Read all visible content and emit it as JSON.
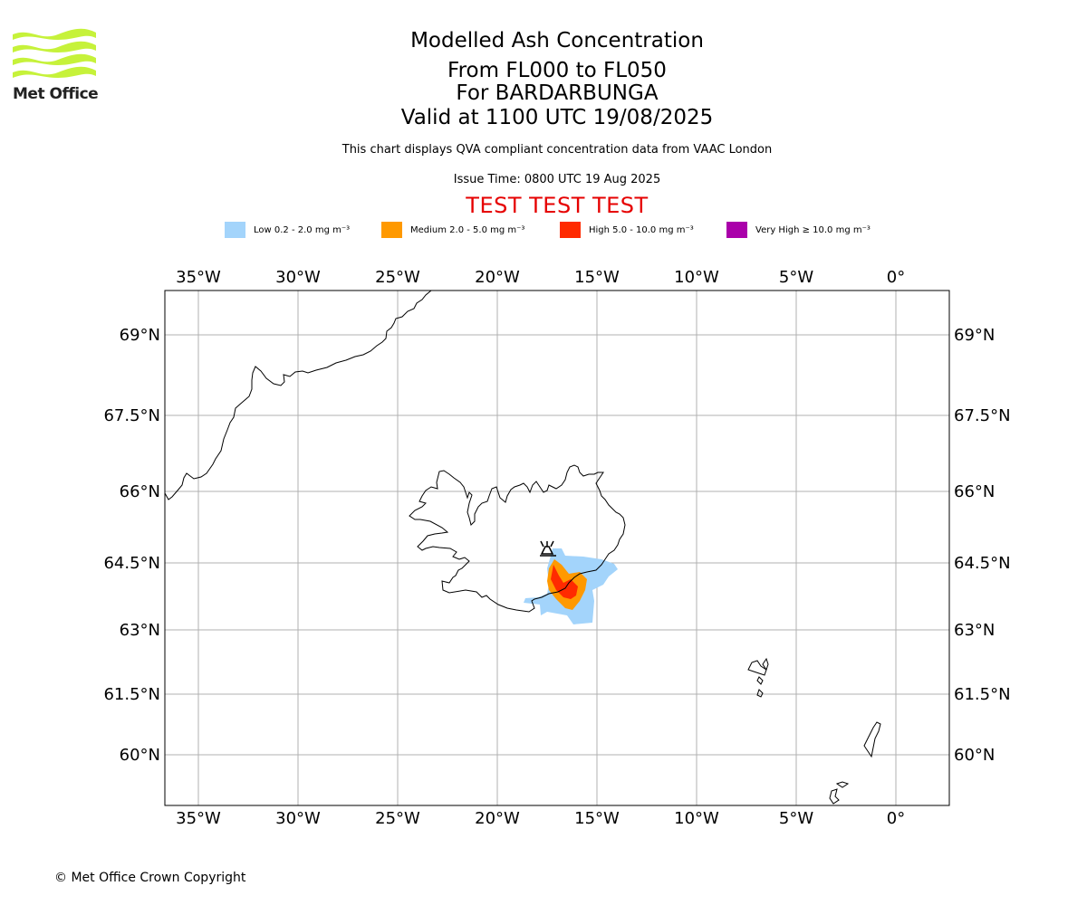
{
  "logo": {
    "text": "Met Office"
  },
  "header": {
    "title": "Modelled Ash Concentration",
    "levels": "From FL000 to FL050",
    "volcano": "For BARDARBUNGA",
    "valid": "Valid at 1100 UTC 19/08/2025",
    "description": "This chart displays QVA compliant concentration data from VAAC London",
    "issue_time": "Issue Time: 0800 UTC 19 Aug 2025",
    "test_banner": "TEST TEST TEST"
  },
  "legend": [
    {
      "label": "Low 0.2 - 2.0 mg m⁻³",
      "color": "#a3d4fb"
    },
    {
      "label": "Medium 2.0 - 5.0 mg m⁻³",
      "color": "#ff9900"
    },
    {
      "label": "High 5.0 - 10.0 mg m⁻³",
      "color": "#ff2a00"
    },
    {
      "label": "Very High ≥ 10.0 mg m⁻³",
      "color": "#aa00aa"
    }
  ],
  "map": {
    "lon_labels": [
      "35°W",
      "30°W",
      "25°W",
      "20°W",
      "15°W",
      "10°W",
      "5°W",
      "0°"
    ],
    "lat_labels": [
      "69°N",
      "67.5°N",
      "66°N",
      "64.5°N",
      "63°N",
      "61.5°N",
      "60°N"
    ],
    "coast_color": "#000000",
    "grid_color": "#b0b0b0"
  },
  "footer": {
    "copyright": "© Met Office Crown Copyright"
  }
}
